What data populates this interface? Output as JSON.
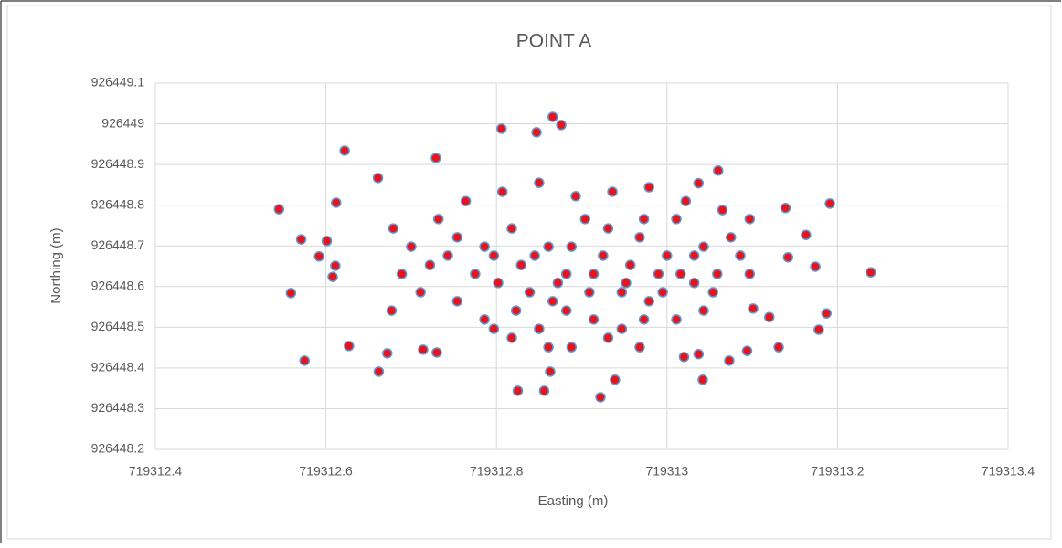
{
  "chart_data": {
    "type": "scatter",
    "title": "POINT A",
    "x_label": "Easting (m)",
    "y_label": "Northing (m)",
    "xlim": [
      719312.4,
      719313.4
    ],
    "xticks": [
      719312.4,
      719312.6,
      719312.8,
      719313,
      719313.2,
      719313.4
    ],
    "ylim": [
      926448.2,
      926449.1
    ],
    "yticks": [
      926448.2,
      926448.3,
      926448.4,
      926448.5,
      926448.6,
      926448.7,
      926448.8,
      926448.9,
      926449,
      926449.1
    ],
    "grid": true,
    "series": [
      {
        "color": "#e8141c",
        "edge_color": "#5b9bd5",
        "x": [
          719312.545,
          719312.571,
          719312.559,
          719312.575,
          719312.592,
          719312.601,
          719312.612,
          719312.622,
          719312.627,
          719312.608,
          719312.611,
          719312.662,
          719312.672,
          719312.661,
          719312.677,
          719312.714,
          719312.73,
          719312.729,
          719312.806,
          719312.847,
          719312.866,
          719312.876,
          719312.825,
          719312.856,
          719312.863,
          719312.922,
          719312.939,
          719313.042,
          719313.073,
          719313.094,
          719313.131,
          719313.178,
          719313.187,
          719313.174,
          719313.163,
          719313.191,
          719313.239,
          719313.139,
          719313.142,
          719313.06,
          719313.037,
          719313.037,
          719313.02,
          719313.12,
          719313.101,
          719312.732,
          719312.754,
          719312.775,
          719312.797,
          719312.818,
          719312.839,
          719312.861,
          719312.882,
          719312.904,
          719312.925,
          719312.947,
          719312.968,
          719312.99,
          719313.011,
          719313.032,
          719313.054,
          719313.075,
          719313.097,
          719312.754,
          719312.786,
          719312.818,
          719312.85,
          719312.882,
          719312.914,
          719312.947,
          719312.979,
          719313.011,
          719313.043,
          719312.764,
          719312.807,
          719312.85,
          719312.893,
          719312.936,
          719312.979,
          719313.022,
          719313.065,
          719313.097,
          719312.722,
          719312.711,
          719312.743,
          719312.786,
          719312.829,
          719312.872,
          719312.914,
          719312.957,
          719313,
          719313.043,
          719313.086,
          719312.802,
          719312.845,
          719312.888,
          719312.931,
          719312.973,
          719313.016,
          719313.059,
          719312.888,
          719312.931,
          719312.973,
          719312.823,
          719312.866,
          719312.909,
          719312.952,
          719312.995,
          719313.032,
          719312.7,
          719312.689,
          719312.679,
          719312.968,
          719312.861,
          719312.797
        ],
        "values": [
          926448.79,
          926448.716,
          926448.584,
          926448.418,
          926448.674,
          926448.712,
          926448.806,
          926448.934,
          926448.454,
          926448.624,
          926448.651,
          926448.391,
          926448.436,
          926448.867,
          926448.541,
          926448.445,
          926448.438,
          926448.916,
          926448.988,
          926448.979,
          926449.017,
          926448.997,
          926448.344,
          926448.344,
          926448.391,
          926448.328,
          926448.371,
          926448.371,
          926448.418,
          926448.442,
          926448.451,
          926448.494,
          926448.534,
          926448.649,
          926448.727,
          926448.804,
          926448.635,
          926448.793,
          926448.672,
          926448.885,
          926448.854,
          926448.434,
          926448.427,
          926448.525,
          926448.546,
          926448.766,
          926448.721,
          926448.631,
          926448.676,
          926448.743,
          926448.586,
          926448.698,
          926448.631,
          926448.766,
          926448.676,
          926448.586,
          926448.721,
          926448.631,
          926448.766,
          926448.676,
          926448.586,
          926448.721,
          926448.631,
          926448.564,
          926448.519,
          926448.474,
          926448.496,
          926448.541,
          926448.519,
          926448.496,
          926448.564,
          926448.519,
          926448.541,
          926448.81,
          926448.833,
          926448.855,
          926448.822,
          926448.833,
          926448.844,
          926448.81,
          926448.788,
          926448.766,
          926448.653,
          926448.586,
          926448.676,
          926448.698,
          926448.653,
          926448.609,
          926448.631,
          926448.653,
          926448.676,
          926448.698,
          926448.676,
          926448.609,
          926448.676,
          926448.698,
          926448.743,
          926448.766,
          926448.631,
          926448.631,
          926448.451,
          926448.474,
          926448.519,
          926448.541,
          926448.564,
          926448.586,
          926448.609,
          926448.586,
          926448.609,
          926448.698,
          926448.631,
          926448.743,
          926448.451,
          926448.451,
          926448.496
        ]
      }
    ]
  }
}
